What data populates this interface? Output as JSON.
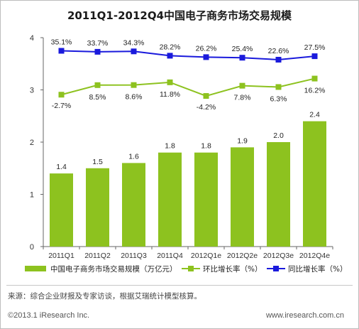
{
  "chart_data": {
    "type": "bar",
    "title": "2011Q1-2012Q4中国电子商务市场交易规模",
    "categories": [
      "2011Q1",
      "2011Q2",
      "2011Q3",
      "2011Q4",
      "2012Q1e",
      "2012Q2e",
      "2012Q3e",
      "2012Q4e"
    ],
    "ylim": [
      0,
      4
    ],
    "yticks": [
      "0",
      "1",
      "2",
      "3",
      "4"
    ],
    "legend_position": "bottom",
    "grid": false,
    "series": [
      {
        "name": "中国电子商务市场交易规模（万亿元）",
        "kind": "bar",
        "color": "#8dc21f",
        "values": [
          1.4,
          1.5,
          1.6,
          1.8,
          1.8,
          1.9,
          2.0,
          2.4
        ],
        "value_labels": [
          "1.4",
          "1.5",
          "1.6",
          "1.8",
          "1.8",
          "1.9",
          "2.0",
          "2.4"
        ]
      },
      {
        "name": "环比增长率（%）",
        "kind": "line",
        "color": "#8dc21f",
        "values": [
          -2.7,
          8.5,
          8.6,
          11.8,
          -4.2,
          7.8,
          6.3,
          16.2
        ],
        "value_labels": [
          "-2.7%",
          "8.5%",
          "8.6%",
          "11.8%",
          "-4.2%",
          "7.8%",
          "6.3%",
          "16.2%"
        ]
      },
      {
        "name": "同比增长率（%）",
        "kind": "line",
        "color": "#1a1adc",
        "values": [
          35.1,
          33.7,
          34.3,
          28.2,
          26.2,
          25.4,
          22.6,
          27.5
        ],
        "value_labels": [
          "35.1%",
          "33.7%",
          "34.3%",
          "28.2%",
          "26.2%",
          "25.4%",
          "22.6%",
          "27.5%"
        ]
      }
    ]
  },
  "footer": {
    "source": "来源：综合企业财报及专家访谈，根据艾瑞统计模型核算。",
    "copyright": "©2013.1 iResearch Inc.",
    "website": "www.iresearch.com.cn"
  }
}
